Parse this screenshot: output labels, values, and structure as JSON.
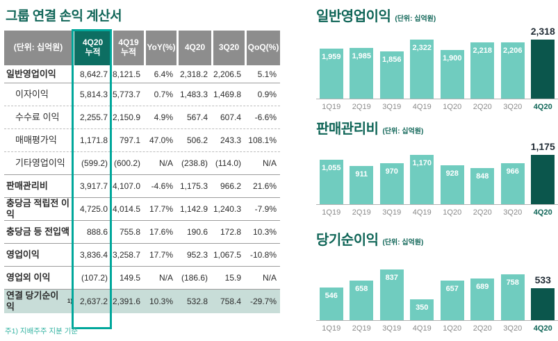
{
  "report": {
    "table": {
      "title": "그룹 연결 손익 계산서",
      "columns": [
        "(단위: 십억원)",
        "4Q20\n누적",
        "4Q19\n누적",
        "YoY(%)",
        "4Q20",
        "3Q20",
        "QoQ(%)"
      ],
      "highlighted_column": "4Q20 누적",
      "rows": [
        {
          "label": "일반영업이익",
          "bold": true,
          "indent": false,
          "sep": "solid",
          "values": [
            "8,642.7",
            "8,121.5",
            "6.4%",
            "2,318.2",
            "2,206.5",
            "5.1%"
          ]
        },
        {
          "label": "이자이익",
          "bold": false,
          "indent": true,
          "sep": "dashed",
          "values": [
            "5,814.3",
            "5,773.7",
            "0.7%",
            "1,483.3",
            "1,469.8",
            "0.9%"
          ]
        },
        {
          "label": "수수료 이익",
          "bold": false,
          "indent": true,
          "sep": "dashed",
          "values": [
            "2,255.7",
            "2,150.9",
            "4.9%",
            "567.4",
            "607.4",
            "-6.6%"
          ]
        },
        {
          "label": "매매평가익",
          "bold": false,
          "indent": true,
          "sep": "dashed",
          "values": [
            "1,171.8",
            "797.1",
            "47.0%",
            "506.2",
            "243.3",
            "108.1%"
          ]
        },
        {
          "label": "기타영업이익",
          "bold": false,
          "indent": true,
          "sep": "solid",
          "values": [
            "(599.2)",
            "(600.2)",
            "N/A",
            "(238.8)",
            "(114.0)",
            "N/A"
          ]
        },
        {
          "label": "판매관리비",
          "bold": true,
          "indent": false,
          "sep": "solid",
          "values": [
            "3,917.7",
            "4,107.0",
            "-4.6%",
            "1,175.3",
            "966.2",
            "21.6%"
          ]
        },
        {
          "label": "충당금 적립전 이익",
          "bold": true,
          "indent": false,
          "sep": "solid",
          "values": [
            "4,725.0",
            "4,014.5",
            "17.7%",
            "1,142.9",
            "1,240.3",
            "-7.9%"
          ]
        },
        {
          "label": "충당금 등 전입액",
          "bold": true,
          "indent": false,
          "sep": "solid",
          "values": [
            "888.6",
            "755.8",
            "17.6%",
            "190.6",
            "172.8",
            "10.3%"
          ]
        },
        {
          "label": "영업이익",
          "bold": true,
          "indent": false,
          "sep": "solid",
          "values": [
            "3,836.4",
            "3,258.7",
            "17.7%",
            "952.3",
            "1,067.5",
            "-10.8%"
          ]
        },
        {
          "label": "영업외 이익",
          "bold": true,
          "indent": false,
          "sep": "solid",
          "values": [
            "(107.2)",
            "149.5",
            "N/A",
            "(186.6)",
            "15.9",
            "N/A"
          ]
        },
        {
          "label": "연결 당기순이익",
          "sup": "1)",
          "bold": true,
          "indent": false,
          "highlight": true,
          "values": [
            "2,637.2",
            "2,391.6",
            "10.3%",
            "532.8",
            "758.4",
            "-29.7%"
          ]
        }
      ],
      "footnote": "주1) 지배주주 지분 기준"
    }
  },
  "chart_data": [
    {
      "type": "bar",
      "title": "일반영업이익",
      "unit": "(단위: 십억원)",
      "categories": [
        "1Q19",
        "2Q19",
        "3Q19",
        "4Q19",
        "1Q20",
        "2Q20",
        "3Q20",
        "4Q20"
      ],
      "values": [
        1959,
        1985,
        1856,
        2322,
        1900,
        2218,
        2206,
        2318
      ],
      "value_labels": [
        "1,959",
        "1,985",
        "1,856",
        "2,322",
        "1,900",
        "2,218",
        "2,206",
        "2,318"
      ],
      "highlight_index": 7,
      "ylim": [
        0,
        2400
      ],
      "grid": false,
      "legend": false
    },
    {
      "type": "bar",
      "title": "판매관리비",
      "unit": "(단위: 십억원)",
      "categories": [
        "1Q19",
        "2Q19",
        "3Q19",
        "4Q19",
        "1Q20",
        "2Q20",
        "3Q20",
        "4Q20"
      ],
      "values": [
        1055,
        911,
        970,
        1170,
        928,
        848,
        966,
        1175
      ],
      "value_labels": [
        "1,055",
        "911",
        "970",
        "1,170",
        "928",
        "848",
        "966",
        "1,175"
      ],
      "highlight_index": 7,
      "ylim": [
        0,
        1250
      ],
      "grid": false,
      "legend": false
    },
    {
      "type": "bar",
      "title": "당기순이익",
      "unit": "(단위: 십억원)",
      "categories": [
        "1Q19",
        "2Q19",
        "3Q19",
        "4Q19",
        "1Q20",
        "2Q20",
        "3Q20",
        "4Q20"
      ],
      "values": [
        546,
        658,
        837,
        350,
        657,
        689,
        758,
        533
      ],
      "value_labels": [
        "546",
        "658",
        "837",
        "350",
        "657",
        "689",
        "758",
        "533"
      ],
      "highlight_index": 7,
      "ylim": [
        0,
        900
      ],
      "grid": false,
      "legend": false
    }
  ],
  "colors": {
    "brand_teal_dark": "#0f6557",
    "table_header_gray": "#8d8d8d",
    "table_header_teal": "#0d6e62",
    "highlight_column_border": "#00a79b",
    "bar_light": "#70ccbf",
    "bar_dark": "#0b564c",
    "highlight_row_bg": "#c8ddd8",
    "footnote_teal": "#34b3a2"
  }
}
